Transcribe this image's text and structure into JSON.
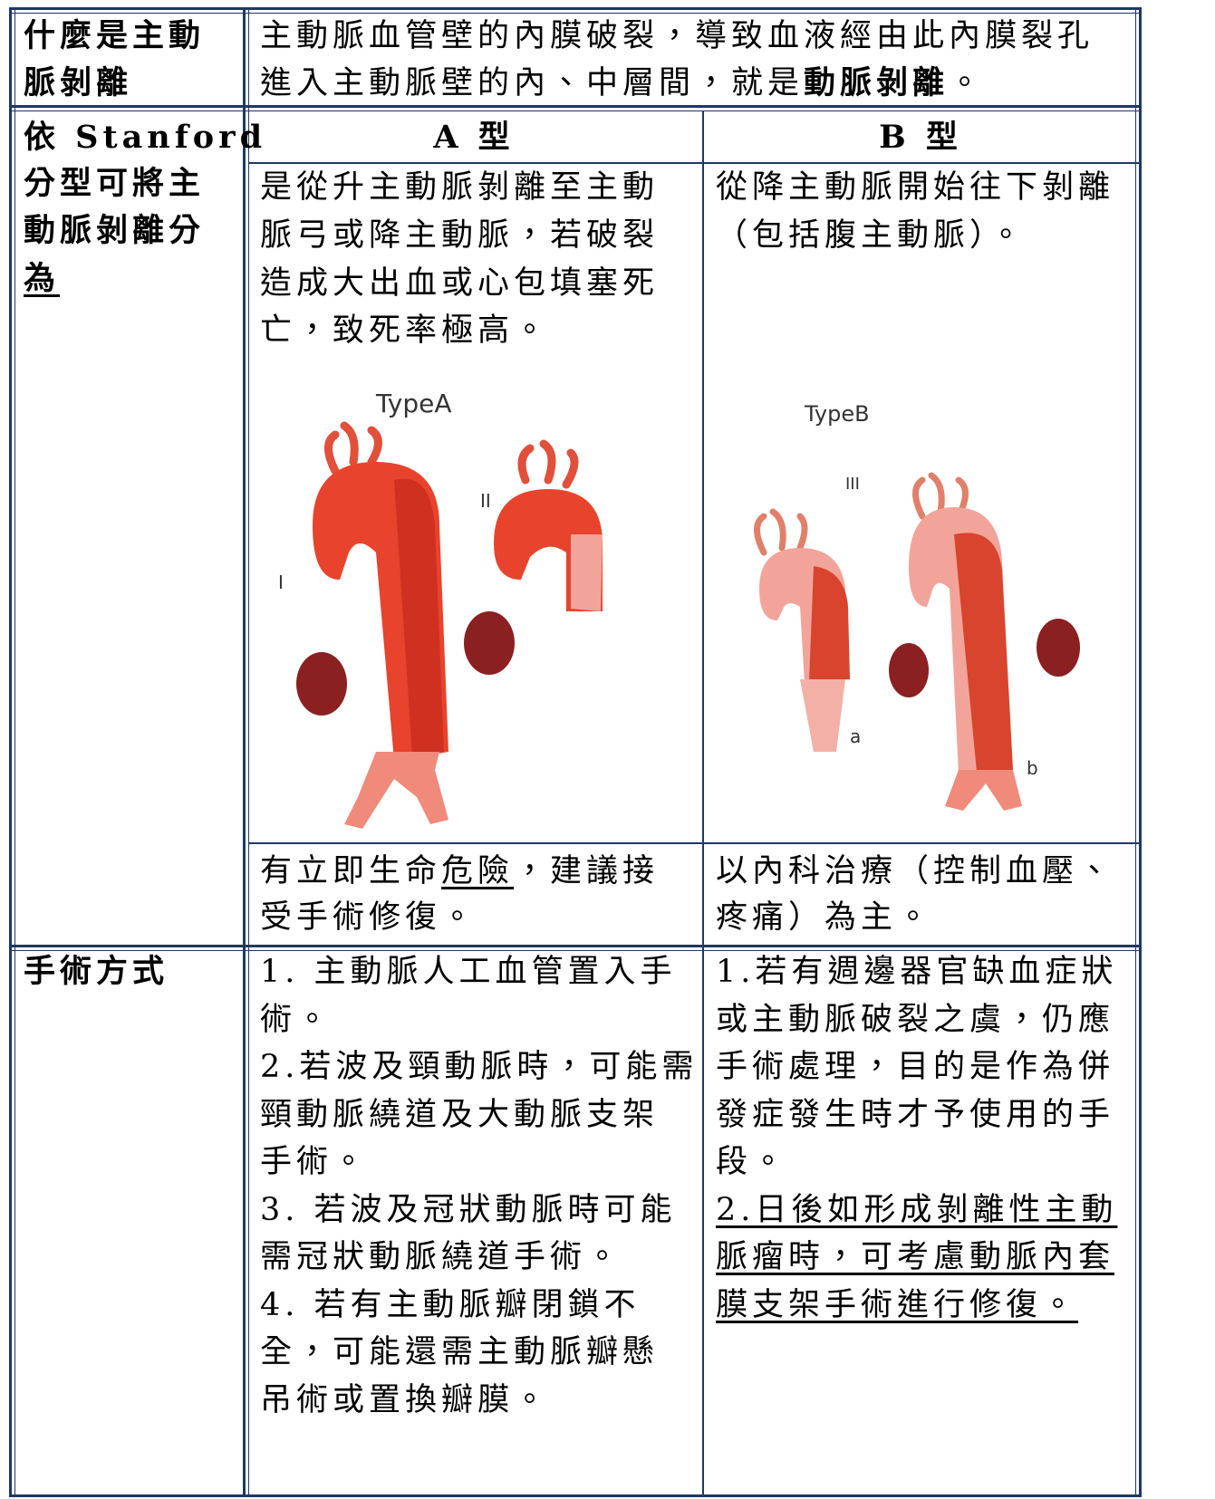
{
  "definition": {
    "label": [
      "什麼是主動",
      "脈剝離"
    ],
    "text": [
      "主動脈血管壁的內膜破裂，導致血液經由此內膜裂孔",
      "進入主動脈壁的內、中層間，就是",
      "動脈剝離",
      "。"
    ]
  },
  "classification": {
    "label": [
      "依 Stanford",
      "分型可將主",
      "動脈剝離分",
      "為"
    ],
    "type_a": {
      "header": "A 型",
      "description": [
        "是從升主動脈剝離至主動",
        "脈弓或降主動脈，若破裂",
        "造成大出血或心包填塞死",
        "亡，致死率極高。"
      ],
      "figure": {
        "title": "TypeA",
        "labels": [
          "I",
          "II"
        ]
      },
      "note": [
        "有立即生命",
        "危險",
        "，建議接",
        "受手術修復。"
      ]
    },
    "type_b": {
      "header": "B 型",
      "description": [
        "從降主動脈開始往下剝離",
        "（包括腹主動脈）。"
      ],
      "figure": {
        "title": "TypeB",
        "labels": [
          "III",
          "a",
          "b"
        ]
      },
      "note": [
        "以內科治療（控制血壓、",
        "疼痛）為主。"
      ]
    }
  },
  "surgery": {
    "label": "手術方式",
    "type_a": [
      "1. 主動脈人工血管置入手",
      "術。",
      "2.若波及頸動脈時，可能需",
      "頸動脈繞道及大動脈支架",
      "手術。",
      "3. 若波及冠狀動脈時可能",
      "需冠狀動脈繞道手術。",
      "4. 若有主動脈瓣閉鎖不",
      "全，可能還需主動脈瓣懸",
      "吊術或置換瓣膜。"
    ],
    "type_b": [
      "1.若有週邊器官缺血症狀",
      "或主動脈破裂之虞，仍應",
      "手術處理，目的是作為併",
      "發症發生時才予使用的手",
      "段。",
      "2.日後如形成剝離性主動",
      "脈瘤時，可考慮動脈內套",
      "膜支架手術進行修復。"
    ]
  }
}
